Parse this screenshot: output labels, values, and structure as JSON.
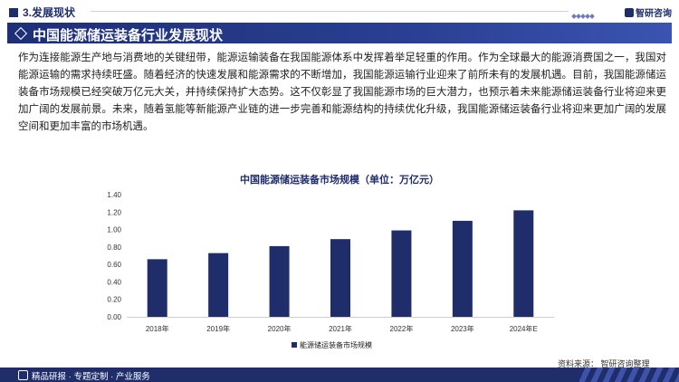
{
  "header": {
    "section": "3.发展现状",
    "brand": "智研咨询"
  },
  "banner": {
    "title": "中国能源储运装备行业发展现状"
  },
  "paragraph": "作为连接能源生产地与消费地的关键纽带，能源运输装备在我国能源体系中发挥着举足轻重的作用。作为全球最大的能源消费国之一，我国对能源运输的需求持续旺盛。随着经济的快速发展和能源需求的不断增加，我国能源运输行业迎来了前所未有的发展机遇。目前，我国能源储运装备市场规模已经突破万亿元大关，并持续保持扩大态势。这不仅彰显了我国能源市场的巨大潜力，也预示着未来能源储运装备行业将迎来更加广阔的发展前景。未来，随着氢能等新能源产业链的进一步完善和能源结构的持续优化升级，我国能源储运装备行业将迎来更加广阔的发展空间和更加丰富的市场机遇。",
  "chart_data": {
    "type": "bar",
    "title": "中国能源储运装备市场规模（单位：万亿元）",
    "categories": [
      "2018年",
      "2019年",
      "2020年",
      "2021年",
      "2022年",
      "2023年",
      "2024年E"
    ],
    "series": [
      {
        "name": "能源储运装备市场规模",
        "values": [
          0.66,
          0.73,
          0.81,
          0.89,
          0.99,
          1.1,
          1.22
        ]
      }
    ],
    "ylim": [
      0,
      1.4
    ],
    "yticks": [
      "0.00",
      "0.20",
      "0.40",
      "0.60",
      "0.80",
      "1.00",
      "1.20",
      "1.40"
    ],
    "grid": false,
    "legend_position": "bottom",
    "bar_color": "#1f2d6b"
  },
  "source": "资料来源：  智研咨询整理",
  "footer": {
    "services": "精品研报 · 专题定制 · 产业服务"
  }
}
